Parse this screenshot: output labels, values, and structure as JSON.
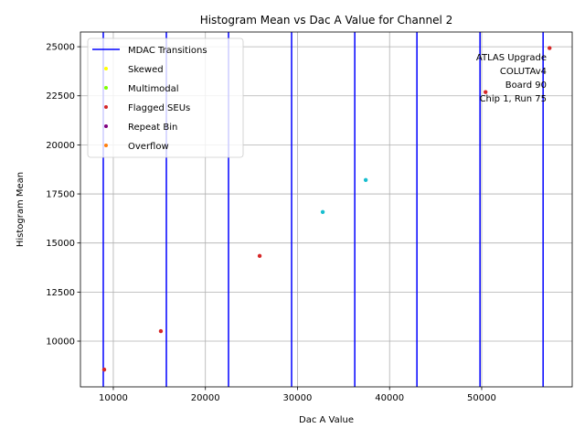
{
  "chart_data": {
    "type": "scatter",
    "title": "Histogram Mean vs Dac A Value for Channel 2",
    "xlabel": "Dac A Value",
    "ylabel": "Histogram Mean",
    "xlim": [
      6430,
      59830
    ],
    "ylim": [
      7670,
      25750
    ],
    "xticks": [
      10000,
      20000,
      30000,
      40000,
      50000
    ],
    "xtick_labels": [
      "10000",
      "20000",
      "30000",
      "40000",
      "50000"
    ],
    "yticks": [
      10000,
      12500,
      15000,
      17500,
      20000,
      22500,
      25000
    ],
    "ytick_labels": [
      "10000",
      "12500",
      "15000",
      "17500",
      "20000",
      "22500",
      "25000"
    ],
    "grid": true,
    "mdac_transitions": [
      8910,
      15760,
      22510,
      29360,
      36220,
      42970,
      49820,
      56670
    ],
    "points": [
      {
        "x": 9010,
        "y": 8550,
        "category": "Flagged SEUs"
      },
      {
        "x": 15160,
        "y": 10510,
        "category": "Flagged SEUs"
      },
      {
        "x": 25890,
        "y": 14340,
        "category": "Flagged SEUs"
      },
      {
        "x": 32740,
        "y": 16580,
        "category": "normal"
      },
      {
        "x": 37410,
        "y": 18210,
        "category": "normal"
      },
      {
        "x": 50420,
        "y": 22690,
        "category": "Flagged SEUs"
      },
      {
        "x": 57370,
        "y": 24930,
        "category": "Flagged SEUs"
      }
    ],
    "legend_placement": "upper-left",
    "legend": [
      {
        "label": "MDAC Transitions",
        "kind": "line",
        "color": "#0000ff"
      },
      {
        "label": "Skewed",
        "kind": "dot",
        "color": "#ffff00"
      },
      {
        "label": "Multimodal",
        "kind": "dot",
        "color": "#7fff00"
      },
      {
        "label": "Flagged SEUs",
        "kind": "dot",
        "color": "#d62728"
      },
      {
        "label": "Repeat Bin",
        "kind": "dot",
        "color": "#800080"
      },
      {
        "label": "Overflow",
        "kind": "dot",
        "color": "#ff7f0e"
      }
    ],
    "colors": {
      "normal": "#17becf",
      "Flagged SEUs": "#d62728",
      "mdac": "#0000ff",
      "grid": "#b0b0b0"
    },
    "annotation": [
      "ATLAS Upgrade",
      "COLUTAv4",
      "Board 90",
      "Chip 1, Run 75"
    ]
  }
}
